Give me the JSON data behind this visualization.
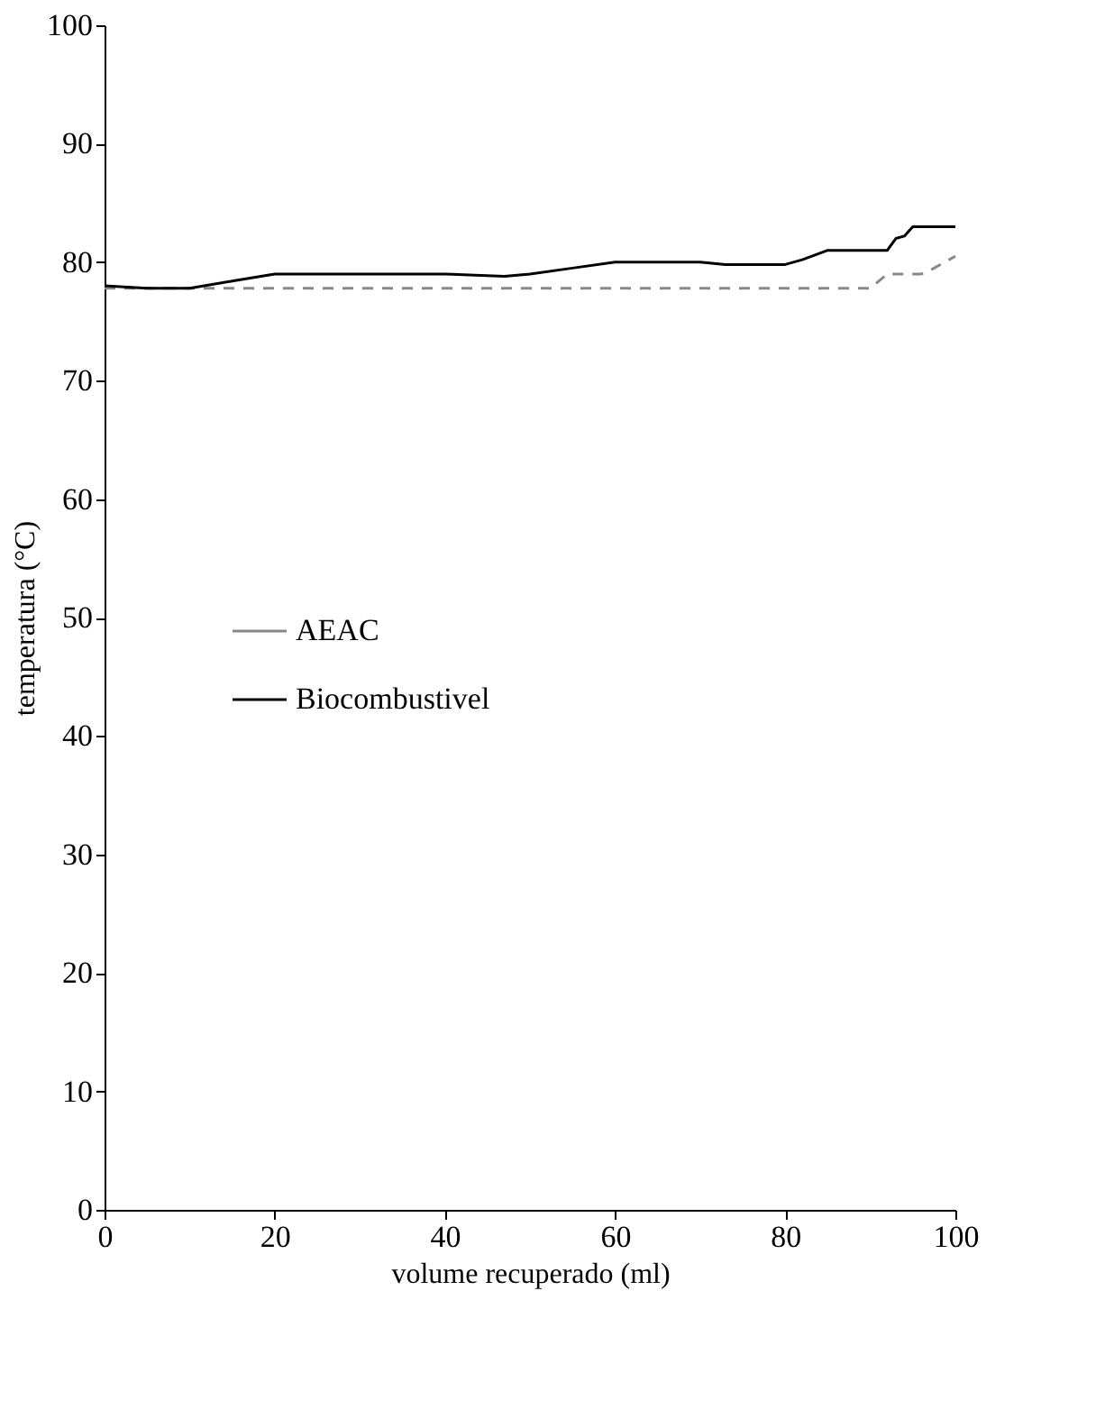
{
  "chart_data": {
    "type": "line",
    "xlabel": "volume recuperado (ml)",
    "ylabel": "temperatura (°C)",
    "xlim": [
      0,
      100
    ],
    "ylim": [
      0,
      100
    ],
    "xticks": [
      0,
      20,
      40,
      60,
      80,
      100
    ],
    "yticks": [
      0,
      10,
      20,
      30,
      40,
      50,
      60,
      70,
      80,
      90,
      100
    ],
    "grid": false,
    "legend": "left",
    "marker": "none",
    "series": [
      {
        "name": "AEAC",
        "color": "#888888",
        "line_style": "dashed",
        "x": [
          0,
          10,
          20,
          30,
          40,
          50,
          60,
          70,
          80,
          90,
          92,
          96,
          97,
          100
        ],
        "values": [
          77.8,
          77.8,
          77.8,
          77.8,
          77.8,
          77.8,
          77.8,
          77.8,
          77.8,
          77.8,
          79,
          79,
          79.3,
          80.5
        ]
      },
      {
        "name": "Biocombustivel",
        "color": "#000000",
        "line_style": "solid",
        "x": [
          0,
          5,
          10,
          15,
          20,
          30,
          40,
          47,
          50,
          55,
          60,
          70,
          73,
          80,
          82,
          85,
          92,
          93,
          94,
          95,
          100
        ],
        "values": [
          78,
          77.8,
          77.8,
          78.4,
          79,
          79,
          79,
          78.8,
          79,
          79.5,
          80,
          80,
          79.8,
          79.8,
          80.2,
          81,
          81,
          82,
          82.2,
          83,
          83
        ]
      }
    ]
  }
}
